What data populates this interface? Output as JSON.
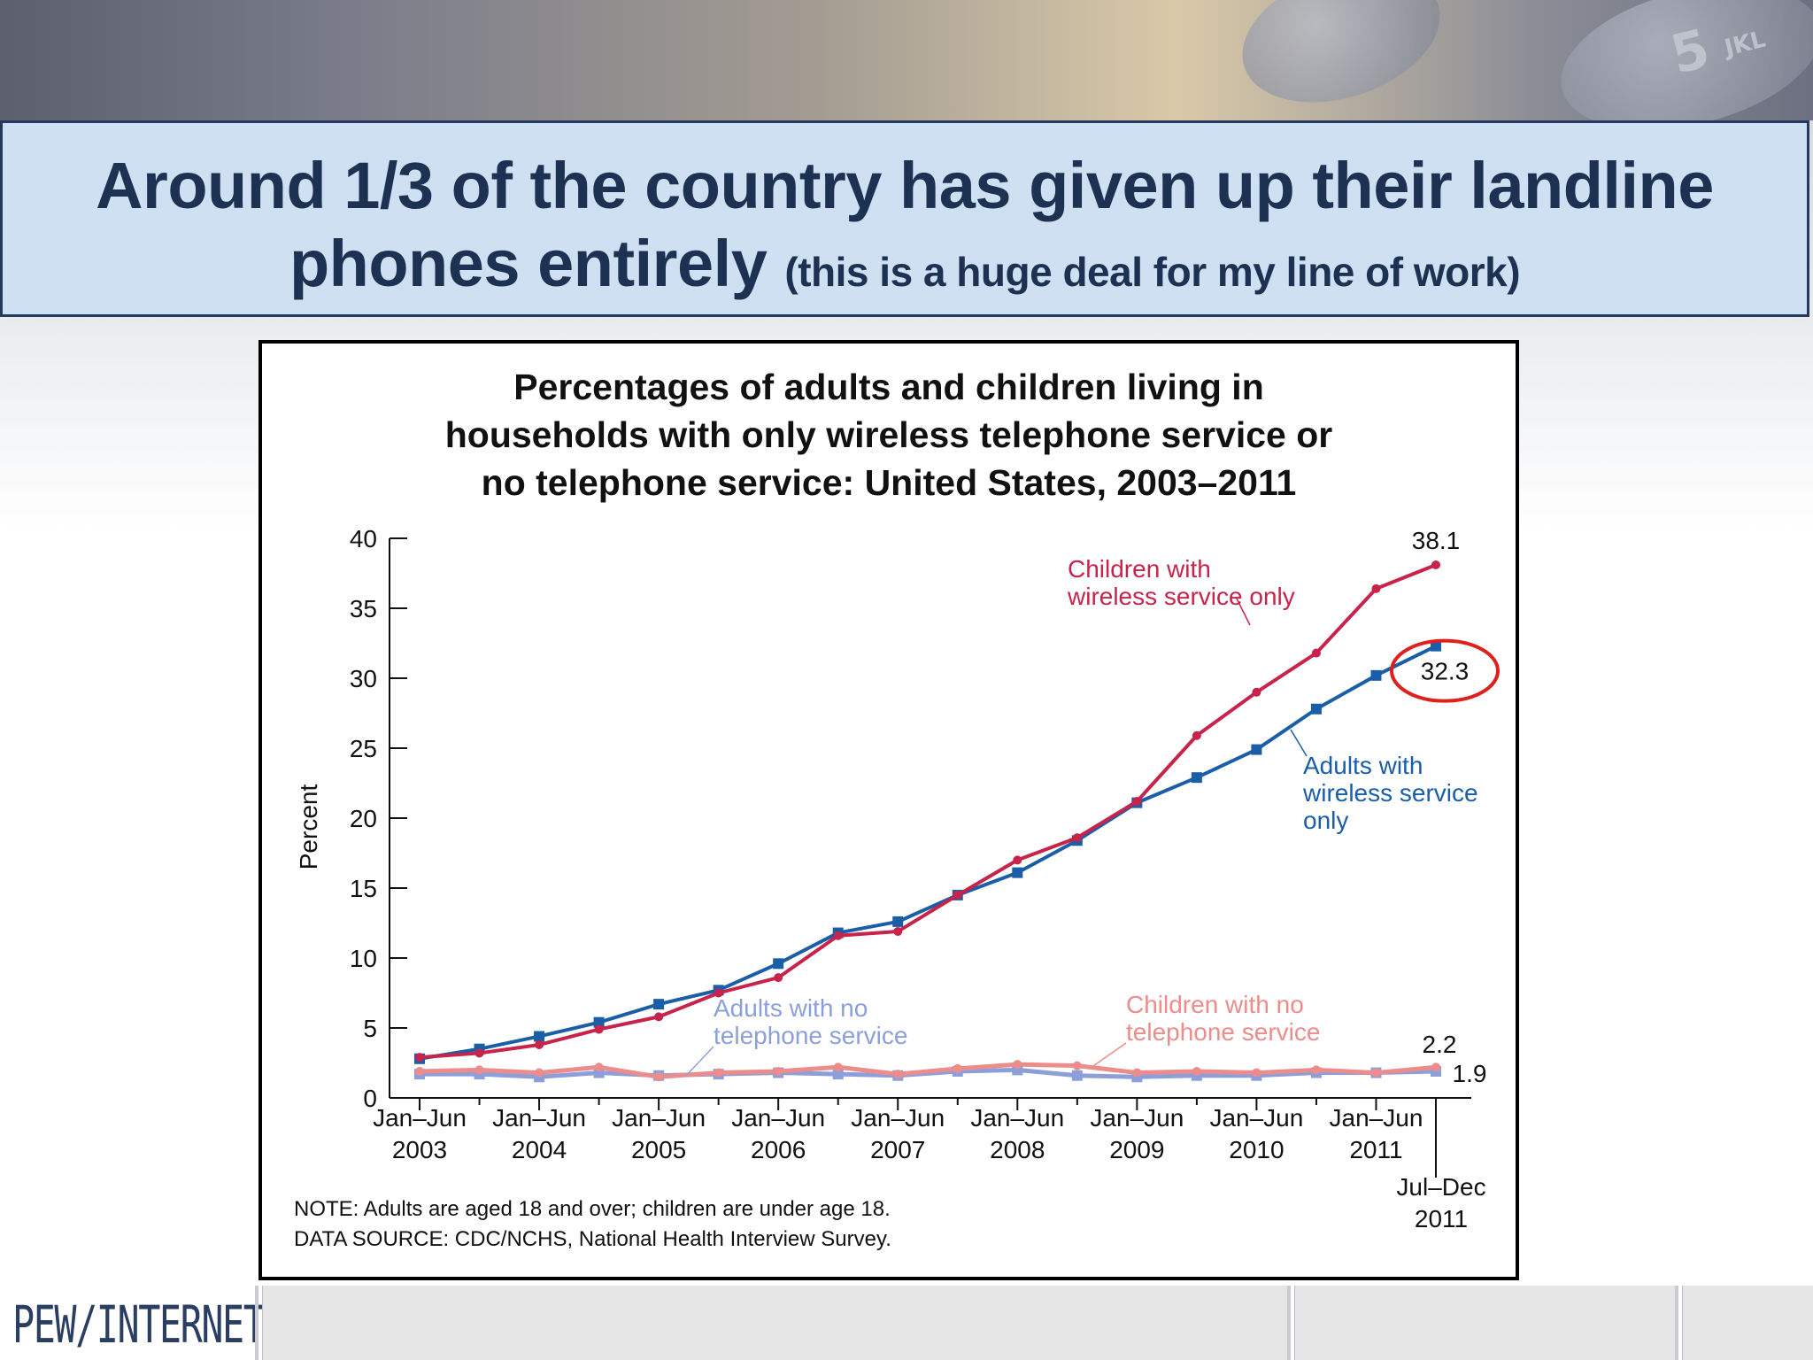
{
  "slide": {
    "title_line1": "Around 1/3 of the country has given up their landline",
    "title_line2": "phones entirely",
    "title_aside": "(this is a huge deal for my line of work)",
    "footer_logo": "PEW/INTERNET",
    "keypad_digit": "5",
    "keypad_letters": "JKL"
  },
  "chart_data": {
    "type": "line",
    "title_lines": [
      "Percentages of adults and children living in",
      "households with only wireless telephone service or",
      "no telephone service: United States, 2003–2011"
    ],
    "ylabel": "Percent",
    "ylim": [
      0,
      40
    ],
    "yticks": [
      "0",
      "5",
      "10",
      "15",
      "20",
      "25",
      "30",
      "35",
      "40"
    ],
    "x": [
      "Jan–Jun 2003",
      "Jul–Dec 2003",
      "Jan–Jun 2004",
      "Jul–Dec 2004",
      "Jan–Jun 2005",
      "Jul–Dec 2005",
      "Jan–Jun 2006",
      "Jul–Dec 2006",
      "Jan–Jun 2007",
      "Jul–Dec 2007",
      "Jan–Jun 2008",
      "Jul–Dec 2008",
      "Jan–Jun 2009",
      "Jul–Dec 2009",
      "Jan–Jun 2010",
      "Jul–Dec 2010",
      "Jan–Jun 2011",
      "Jul–Dec 2011"
    ],
    "xtick_labels": [
      {
        "top": "Jan–Jun",
        "bottom": "2003",
        "index": 0
      },
      {
        "top": "Jan–Jun",
        "bottom": "2004",
        "index": 2
      },
      {
        "top": "Jan–Jun",
        "bottom": "2005",
        "index": 4
      },
      {
        "top": "Jan–Jun",
        "bottom": "2006",
        "index": 6
      },
      {
        "top": "Jan–Jun",
        "bottom": "2007",
        "index": 8
      },
      {
        "top": "Jan–Jun",
        "bottom": "2008",
        "index": 10
      },
      {
        "top": "Jan–Jun",
        "bottom": "2009",
        "index": 12
      },
      {
        "top": "Jan–Jun",
        "bottom": "2010",
        "index": 14
      },
      {
        "top": "Jan–Jun",
        "bottom": "2011",
        "index": 16
      },
      {
        "top": "Jul–Dec",
        "bottom": "2011",
        "index": 17
      }
    ],
    "series": [
      {
        "name": "Children with wireless service only",
        "color": "#c8234a",
        "marker": "circle",
        "values": [
          2.9,
          3.2,
          3.8,
          4.9,
          5.8,
          7.5,
          8.6,
          11.6,
          11.9,
          14.5,
          17.0,
          18.6,
          21.2,
          25.9,
          29.0,
          31.8,
          36.4,
          38.1
        ]
      },
      {
        "name": "Adults with wireless service only",
        "color": "#1a5ea8",
        "marker": "square",
        "values": [
          2.8,
          3.5,
          4.4,
          5.4,
          6.7,
          7.7,
          9.6,
          11.8,
          12.6,
          14.5,
          16.1,
          18.4,
          21.1,
          22.9,
          24.9,
          27.8,
          30.2,
          32.3
        ]
      },
      {
        "name": "Children with no telephone service",
        "color": "#ec8d8b",
        "marker": "circle",
        "values": [
          1.9,
          2.0,
          1.8,
          2.2,
          1.5,
          1.8,
          1.9,
          2.2,
          1.7,
          2.1,
          2.4,
          2.3,
          1.8,
          1.9,
          1.8,
          2.0,
          1.8,
          2.2
        ]
      },
      {
        "name": "Adults with no telephone service",
        "color": "#8c9fda",
        "marker": "square",
        "values": [
          1.7,
          1.7,
          1.5,
          1.8,
          1.6,
          1.7,
          1.8,
          1.7,
          1.6,
          1.9,
          2.0,
          1.6,
          1.5,
          1.6,
          1.6,
          1.8,
          1.8,
          1.9
        ]
      }
    ],
    "legend_labels": [
      {
        "lines": [
          "Children with",
          "wireless service only"
        ],
        "color": "#c8234a"
      },
      {
        "lines": [
          "Adults with",
          "wireless service",
          "only"
        ],
        "color": "#1a5ea8"
      },
      {
        "lines": [
          "Children with no",
          "telephone service"
        ],
        "color": "#ec8d8b"
      },
      {
        "lines": [
          "Adults with no",
          "telephone service"
        ],
        "color": "#8c9fda"
      }
    ],
    "end_labels": [
      "38.1",
      "32.3",
      "2.2",
      "1.9"
    ],
    "highlight_circle_on": "32.3",
    "note_lines": [
      "NOTE: Adults are aged 18 and over; children are under age 18.",
      "DATA SOURCE: CDC/NCHS, National Health Interview Survey."
    ]
  }
}
